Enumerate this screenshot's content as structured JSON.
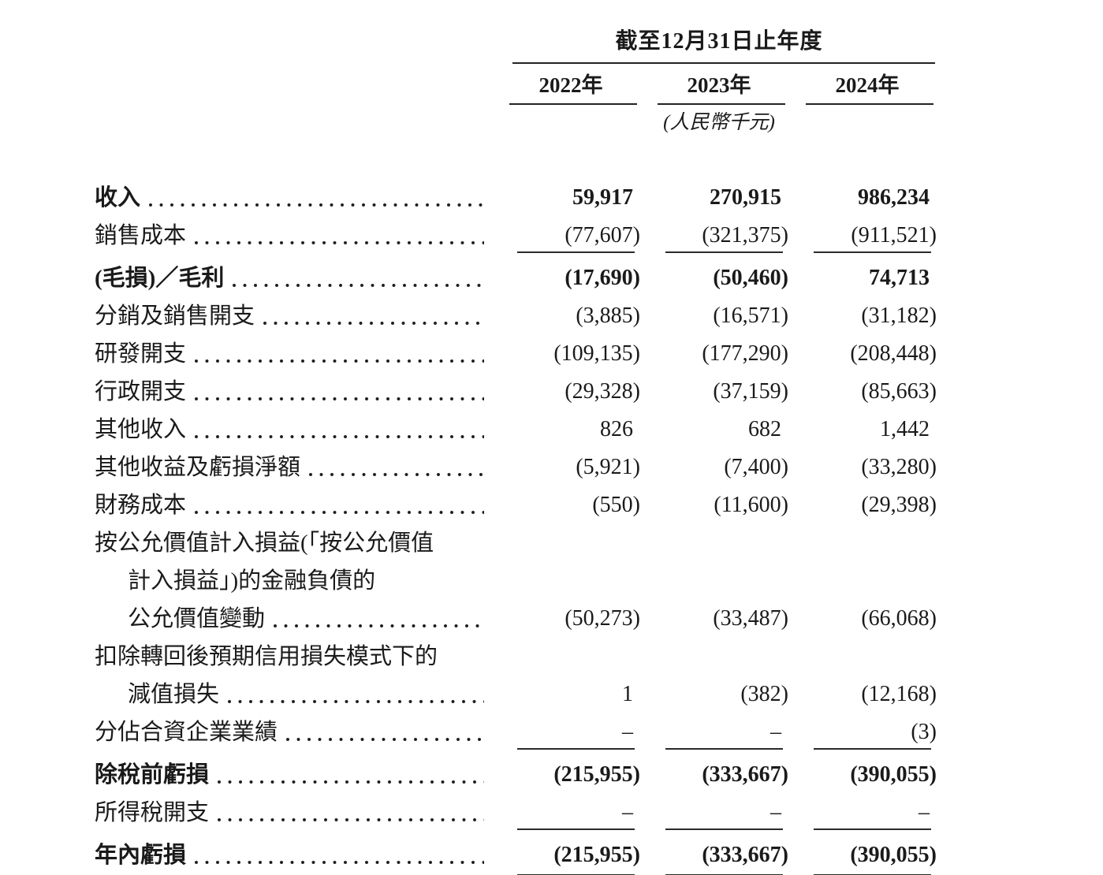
{
  "table": {
    "period_header": "截至12月31日止年度",
    "columns": [
      "2022年",
      "2023年",
      "2024年"
    ],
    "unit_note": "(人民幣千元)",
    "rows": [
      {
        "label": "收入",
        "values": [
          "59,917",
          "270,915",
          "986,234"
        ]
      },
      {
        "label": "銷售成本",
        "values": [
          "(77,607)",
          "(321,375)",
          "(911,521)"
        ]
      },
      {
        "label": "(毛損)／毛利",
        "values": [
          "(17,690)",
          "(50,460)",
          "74,713"
        ]
      },
      {
        "label": "分銷及銷售開支",
        "values": [
          "(3,885)",
          "(16,571)",
          "(31,182)"
        ]
      },
      {
        "label": "研發開支",
        "values": [
          "(109,135)",
          "(177,290)",
          "(208,448)"
        ]
      },
      {
        "label": "行政開支",
        "values": [
          "(29,328)",
          "(37,159)",
          "(85,663)"
        ]
      },
      {
        "label": "其他收入",
        "values": [
          "826",
          "682",
          "1,442"
        ]
      },
      {
        "label": "其他收益及虧損淨額",
        "values": [
          "(5,921)",
          "(7,400)",
          "(33,280)"
        ]
      },
      {
        "label": "財務成本",
        "values": [
          "(550)",
          "(11,600)",
          "(29,398)"
        ]
      },
      {
        "label": "按公允價值計入損益(「按公允價值"
      },
      {
        "label": "計入損益」)的金融負債的"
      },
      {
        "label": "公允價值變動",
        "values": [
          "(50,273)",
          "(33,487)",
          "(66,068)"
        ]
      },
      {
        "label": "扣除轉回後預期信用損失模式下的"
      },
      {
        "label": "減值損失",
        "values": [
          "1",
          "(382)",
          "(12,168)"
        ]
      },
      {
        "label": "分佔合資企業業績",
        "values": [
          "–",
          "–",
          "(3)"
        ]
      },
      {
        "label": "除稅前虧損",
        "values": [
          "(215,955)",
          "(333,667)",
          "(390,055)"
        ]
      },
      {
        "label": "所得稅開支",
        "values": [
          "–",
          "–",
          "–"
        ]
      },
      {
        "label": "年內虧損",
        "values": [
          "(215,955)",
          "(333,667)",
          "(390,055)"
        ]
      }
    ]
  }
}
